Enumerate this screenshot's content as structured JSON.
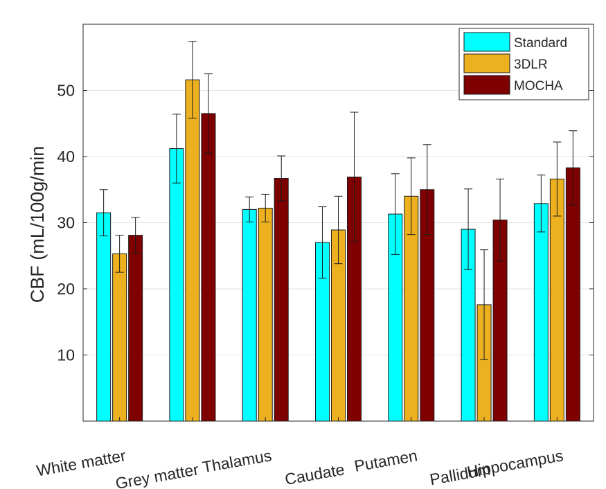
{
  "chart_data": {
    "type": "bar",
    "title": "",
    "xlabel": "",
    "ylabel": "CBF (mL/100g/min",
    "ylim": [
      0,
      60
    ],
    "yticks": [
      10,
      20,
      30,
      40,
      50
    ],
    "grid": true,
    "legend_position": "top-right",
    "categories": [
      "White matter",
      "Grey matter",
      "Thalamus",
      "Caudate",
      "Putamen",
      "Pallidum",
      "Hippocampus"
    ],
    "series": [
      {
        "name": "Standard",
        "color": "#00FFFF",
        "values": [
          31.5,
          41.2,
          32.0,
          27.0,
          31.3,
          29.0,
          32.9
        ],
        "error": [
          3.5,
          5.2,
          1.9,
          5.4,
          6.1,
          6.1,
          4.3
        ]
      },
      {
        "name": "3DLR",
        "color": "#EDB120",
        "values": [
          25.3,
          51.6,
          32.2,
          28.9,
          34.0,
          17.6,
          36.6
        ],
        "error": [
          2.8,
          5.8,
          2.1,
          5.1,
          5.8,
          8.3,
          5.6
        ]
      },
      {
        "name": "MOCHA",
        "color": "#7F0000",
        "values": [
          28.1,
          46.5,
          36.7,
          36.9,
          35.0,
          30.4,
          38.3
        ],
        "error": [
          2.7,
          6.0,
          3.4,
          9.8,
          6.8,
          6.2,
          5.6
        ]
      }
    ]
  }
}
